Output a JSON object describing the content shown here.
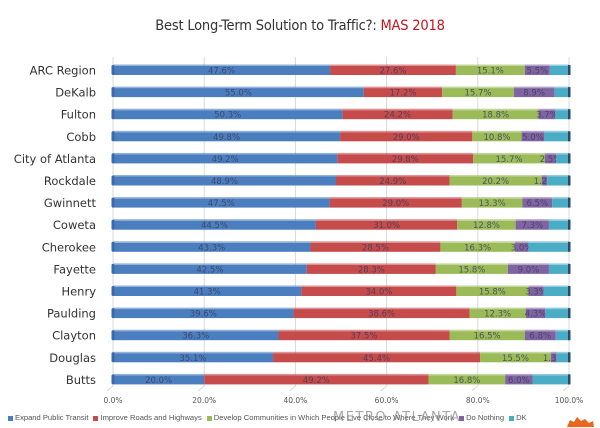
{
  "title": {
    "main": "Best Long-Term Solution to Traffic?: ",
    "accent": "MAS 2018"
  },
  "watermark": "METRO ATLANTA",
  "logo_icon": "orange-map-logo-icon",
  "chart_data": {
    "type": "bar",
    "orientation": "horizontal",
    "stacked": true,
    "title": "Best Long-Term Solution to Traffic?: MAS 2018",
    "xlabel": "",
    "ylabel": "",
    "xlim": [
      0,
      100
    ],
    "x_ticks": [
      "0.0%",
      "20.0%",
      "40.0%",
      "60.0%",
      "80.0%",
      "100.0%"
    ],
    "grid": true,
    "legend_position": "bottom",
    "categories": [
      "ARC Region",
      "DeKalb",
      "Fulton",
      "Cobb",
      "City of Atlanta",
      "Rockdale",
      "Gwinnett",
      "Coweta",
      "Cherokee",
      "Fayette",
      "Henry",
      "Paulding",
      "Clayton",
      "Douglas",
      "Butts"
    ],
    "series": [
      {
        "name": "Expand Public Transit",
        "color": "#4a7ebf",
        "values": [
          47.6,
          55.0,
          50.3,
          49.8,
          49.2,
          48.9,
          47.5,
          44.5,
          43.3,
          42.5,
          41.3,
          39.6,
          36.3,
          35.1,
          20.0
        ],
        "labels": [
          "47.6%",
          "55.0%",
          "50.3%",
          "49.8%",
          "49.2%",
          "48.9%",
          "47.5%",
          "44.5%",
          "43.3%",
          "42.5%",
          "41.3%",
          "39.6%",
          "36.3%",
          "35.1%",
          "20.0%"
        ]
      },
      {
        "name": "Improve Roads and Highways",
        "color": "#c64b4b",
        "values": [
          27.6,
          17.2,
          24.2,
          29.0,
          29.8,
          24.9,
          29.0,
          31.0,
          28.5,
          28.3,
          34.0,
          38.6,
          37.5,
          45.4,
          49.2
        ],
        "labels": [
          "27.6%",
          "17.2%",
          "24.2%",
          "29.0%",
          "29.8%",
          "24.9%",
          "29.0%",
          "31.0%",
          "28.5%",
          "28.3%",
          "34.0%",
          "38.6%",
          "37.5%",
          "45.4%",
          "49.2%"
        ]
      },
      {
        "name": "Develop Communities in Which People Live Close to Where They Work",
        "color": "#9bbb59",
        "values": [
          15.1,
          15.7,
          18.8,
          10.8,
          15.7,
          20.2,
          13.3,
          12.8,
          16.3,
          15.8,
          15.8,
          12.3,
          16.5,
          15.5,
          16.8
        ],
        "labels": [
          "15.1%",
          "15.7%",
          "18.8%",
          "10.8%",
          "15.7%",
          "20.2%",
          "13.3%",
          "12.8%",
          "16.3%",
          "15.8%",
          "15.8%",
          "12.3%",
          "16.5%",
          "15.5%",
          "16.8%"
        ]
      },
      {
        "name": "Do Nothing",
        "color": "#8064a2",
        "values": [
          5.5,
          8.9,
          3.7,
          5.0,
          2.5,
          1.2,
          6.5,
          7.3,
          3.0,
          9.0,
          3.3,
          4.3,
          6.8,
          1.3,
          6.0
        ],
        "labels": [
          "5.5%",
          "8.9%",
          "3.7%",
          "5.0%",
          "2.5%",
          "1.2%",
          "6.5%",
          "7.3%",
          "3.0%",
          "9.0%",
          "3.3%",
          "4.3%",
          "6.8%",
          "1.3%",
          "6.0%"
        ]
      },
      {
        "name": "DK",
        "color": "#4bacc6",
        "values": [
          4.2,
          3.2,
          3.0,
          5.4,
          2.8,
          4.8,
          3.7,
          4.4,
          8.9,
          4.4,
          5.6,
          5.2,
          2.9,
          2.7,
          8.0
        ],
        "labels": [
          "",
          "",
          "",
          "",
          "",
          "",
          "",
          "",
          "",
          "",
          "",
          "",
          "",
          "",
          ""
        ]
      }
    ]
  }
}
